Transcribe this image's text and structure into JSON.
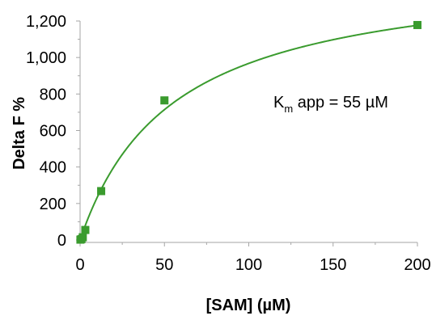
{
  "chart_data": {
    "type": "scatter",
    "xlabel": "[SAM] (µM)",
    "ylabel": "Delta F %",
    "xlim": [
      0,
      200
    ],
    "ylim": [
      0,
      1200
    ],
    "x_ticks": [
      0,
      50,
      100,
      150,
      200
    ],
    "y_ticks": [
      0,
      200,
      400,
      600,
      800,
      1000,
      1200
    ],
    "x_tick_labels": [
      "0",
      "50",
      "100",
      "150",
      "200"
    ],
    "y_tick_labels": [
      "0",
      "200",
      "400",
      "600",
      "800",
      "1,000",
      "1,200"
    ],
    "grid": false,
    "legend": "none",
    "series": [
      {
        "x": [
          0.2,
          0.8,
          1.6,
          3.1,
          12.5,
          50,
          200
        ],
        "y": [
          2,
          5,
          15,
          55,
          268,
          765,
          1178
        ],
        "marker": "square",
        "color": "#3a9b2e"
      }
    ],
    "fit": {
      "model": "michaelis-menten",
      "vmax": 1500,
      "km": 55,
      "color": "#3a9b2e"
    },
    "annotation": {
      "prefix": "K",
      "subscript": "m",
      "suffix": " app = 55 µM"
    }
  }
}
